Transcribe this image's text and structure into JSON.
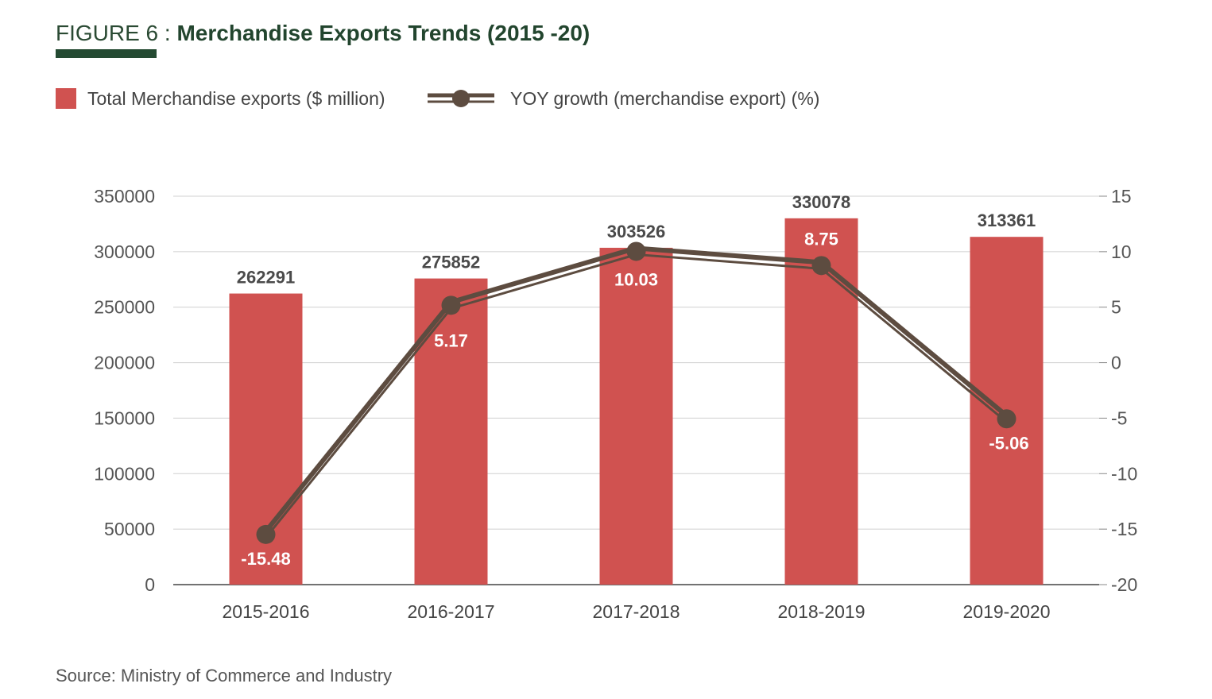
{
  "header": {
    "figure_label": "FIGURE 6",
    "separator": " : ",
    "title": "Merchandise Exports Trends (2015 -20)"
  },
  "legend": {
    "bar_label": "Total Merchandise exports ($ million)",
    "line_label": "YOY growth (merchandise export) (%)"
  },
  "source": "Source: Ministry of Commerce and Industry",
  "colors": {
    "bar": "#d05250",
    "line": "#5d4c40",
    "title": "#22452e",
    "grid": "#d0d0d0"
  },
  "chart_data": {
    "type": "bar",
    "title": "Merchandise Exports Trends (2015 -20)",
    "categories": [
      "2015-2016",
      "2016-2017",
      "2017-2018",
      "2018-2019",
      "2019-2020"
    ],
    "series": [
      {
        "name": "Total Merchandise exports ($ million)",
        "type": "bar",
        "axis": "left",
        "values": [
          262291,
          275852,
          303526,
          330078,
          313361
        ],
        "labels": [
          "262291",
          "275852",
          "303526",
          "330078",
          "313361"
        ]
      },
      {
        "name": "YOY growth (merchandise export) (%)",
        "type": "line",
        "axis": "right",
        "values": [
          -15.48,
          5.17,
          10.03,
          8.75,
          -5.06
        ],
        "labels": [
          "-15.48",
          "5.17",
          "10.03",
          "8.75",
          "-5.06"
        ]
      }
    ],
    "y_left": {
      "range": [
        0,
        350000
      ],
      "ticks": [
        "0",
        "50000",
        "100000",
        "150000",
        "200000",
        "250000",
        "300000",
        "350000"
      ]
    },
    "y_right": {
      "range": [
        -20,
        15
      ],
      "ticks": [
        "-20",
        "-15",
        "-10",
        "-5",
        "0",
        "5",
        "10",
        "15"
      ]
    },
    "grid": true,
    "legend_position": "top-left"
  }
}
